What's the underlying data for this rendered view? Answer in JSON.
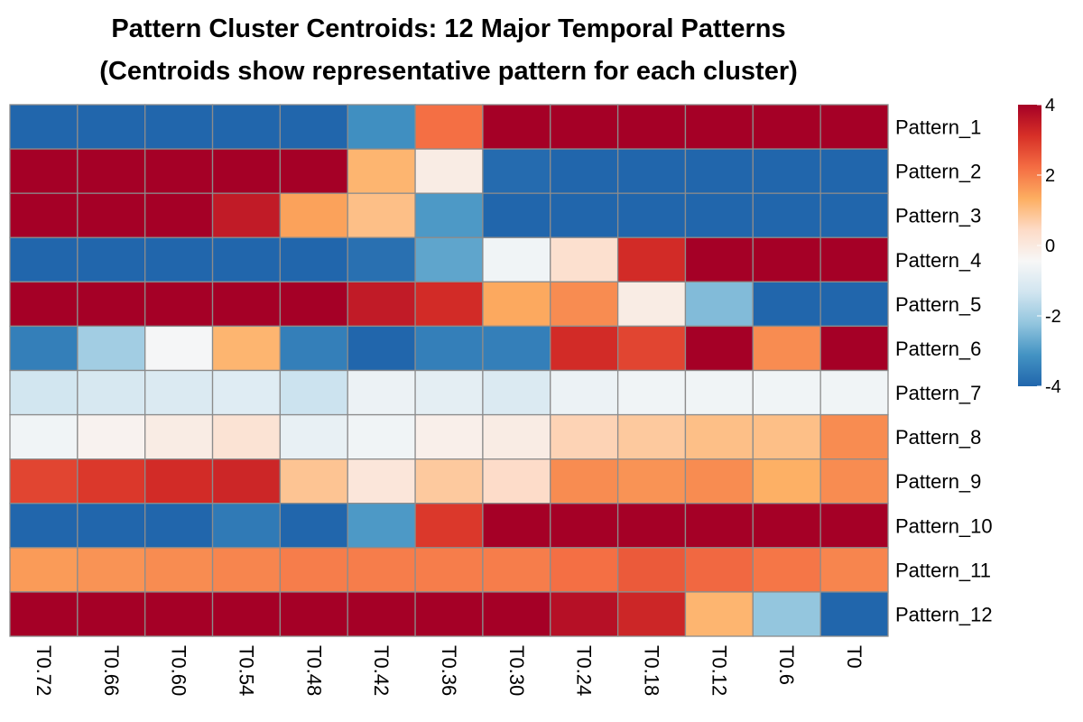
{
  "chart_data": {
    "type": "heatmap",
    "title": "Pattern Cluster Centroids: 12 Major Temporal Patterns",
    "subtitle": "(Centroids show representative pattern for each cluster)",
    "columns": [
      "T0.72",
      "T0.66",
      "T0.60",
      "T0.54",
      "T0.48",
      "T0.42",
      "T0.36",
      "T0.30",
      "T0.24",
      "T0.18",
      "T0.12",
      "T0.6",
      "T0"
    ],
    "rows": [
      "Pattern_1",
      "Pattern_2",
      "Pattern_3",
      "Pattern_4",
      "Pattern_5",
      "Pattern_6",
      "Pattern_7",
      "Pattern_8",
      "Pattern_9",
      "Pattern_10",
      "Pattern_11",
      "Pattern_12"
    ],
    "values": [
      [
        -4,
        -4,
        -4,
        -4,
        -4,
        -3.2,
        2.2,
        4,
        4,
        4,
        4,
        4,
        4
      ],
      [
        4,
        4,
        4,
        4,
        4,
        1.2,
        -0.1,
        -3.9,
        -4,
        -4,
        -4,
        -4,
        -4
      ],
      [
        4,
        4,
        4,
        3.5,
        1.5,
        1,
        -3,
        -4,
        -4,
        -4,
        -4,
        -4,
        -4
      ],
      [
        -4,
        -4,
        -4,
        -4,
        -4,
        -3.8,
        -2.8,
        -0.6,
        0.3,
        3.2,
        4,
        4,
        4
      ],
      [
        4,
        4,
        4,
        4,
        4,
        3.5,
        3.2,
        1.4,
        1.8,
        -0.1,
        -2.4,
        -4,
        -4
      ],
      [
        -3.5,
        -2,
        -0.5,
        1.2,
        -3.5,
        -4,
        -3.5,
        -3.5,
        3.2,
        2.8,
        4,
        1.8,
        4
      ],
      [
        -1.3,
        -1.2,
        -1.1,
        -1,
        -1.4,
        -0.7,
        -0.9,
        -1.1,
        -0.7,
        -0.6,
        -0.6,
        -0.6,
        -0.6
      ],
      [
        -0.6,
        -0.3,
        -0.1,
        0.2,
        -0.8,
        -0.6,
        -0.2,
        -0.1,
        0.6,
        0.8,
        1,
        1,
        1.8
      ],
      [
        2.8,
        3,
        3.2,
        3.3,
        0.9,
        0.1,
        0.8,
        0.4,
        1.8,
        1.7,
        1.8,
        1.3,
        1.8
      ],
      [
        -4,
        -4,
        -4,
        -3.6,
        -4,
        -3,
        3,
        4,
        4,
        4,
        4,
        4,
        4
      ],
      [
        1.6,
        1.7,
        1.8,
        1.9,
        2,
        2,
        2,
        2,
        2.2,
        2.5,
        2.3,
        2.1,
        1.9
      ],
      [
        4,
        4,
        4,
        4,
        4,
        4,
        4,
        4,
        3.7,
        3.3,
        1.2,
        -2.2,
        -4
      ]
    ],
    "color_scale": {
      "min": -4,
      "max": 4,
      "stops": [
        "#2166ac",
        "#4393c3",
        "#92c5de",
        "#d1e5f0",
        "#f7f7f7",
        "#fddbc7",
        "#fdae61",
        "#f46d43",
        "#d73027",
        "#a50026"
      ],
      "legend_ticks": [
        "4",
        "2",
        "0",
        "-2",
        "-4"
      ],
      "legend_tick_values": [
        4,
        2,
        0,
        -2,
        -4
      ]
    },
    "cell_border_color": "#8c8c8c",
    "legend_placement": "right"
  }
}
